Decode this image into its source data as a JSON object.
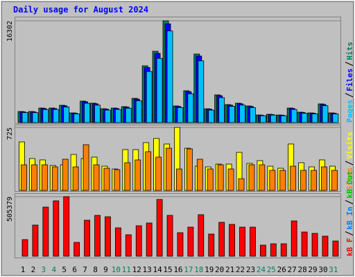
{
  "title": "Daily usage for August 2024",
  "chart_data": [
    {
      "type": "bar",
      "ylim": [
        0,
        16302
      ],
      "yticks": [
        16302
      ],
      "series": [
        {
          "name": "Pages",
          "color": "#00c0ff",
          "values": [
            1597,
            1597,
            2096,
            2096,
            2496,
            1398,
            3094,
            2795,
            1996,
            2096,
            2296,
            3494,
            8185,
            10281,
            14672,
            2396,
            4591,
            9881,
            1996,
            3992,
            2595,
            2795,
            2396,
            1098,
            1198,
            1098,
            2096,
            1498,
            1398,
            2695,
            1398
          ]
        },
        {
          "name": "Files",
          "color": "#0000ff",
          "values": [
            1720,
            1720,
            2260,
            2260,
            2690,
            1506,
            3335,
            3012,
            2151,
            2260,
            2474,
            3766,
            8821,
            11080,
            15813,
            2582,
            4948,
            10650,
            2151,
            4303,
            2797,
            3012,
            2582,
            1183,
            1291,
            1183,
            2260,
            1614,
            1506,
            2904,
            1506
          ]
        },
        {
          "name": "Hits",
          "color": "#00805c",
          "values": [
            1774,
            1774,
            2329,
            2329,
            2773,
            1553,
            3438,
            3105,
            2218,
            2329,
            2551,
            3882,
            9094,
            11423,
            16302,
            2662,
            5101,
            10979,
            2218,
            4436,
            2883,
            3105,
            2662,
            1220,
            1331,
            1220,
            2329,
            1664,
            1553,
            2994,
            1553
          ]
        }
      ]
    },
    {
      "type": "bar",
      "ylim": [
        0,
        725
      ],
      "yticks": [
        725
      ],
      "series": [
        {
          "name": "Sites",
          "color": "#ff8000",
          "values": [
            295,
            295,
            295,
            271,
            359,
            271,
            526,
            295,
            255,
            239,
            319,
            351,
            446,
            383,
            486,
            247,
            478,
            359,
            247,
            295,
            247,
            135,
            295,
            295,
            231,
            231,
            279,
            231,
            231,
            271,
            231
          ]
        },
        {
          "name": "Visits",
          "color": "#ffff00",
          "values": [
            558,
            367,
            351,
            287,
            295,
            414,
            367,
            383,
            279,
            247,
            470,
            470,
            550,
            598,
            534,
            725,
            486,
            279,
            271,
            303,
            303,
            438,
            311,
            343,
            279,
            255,
            534,
            319,
            271,
            351,
            279
          ]
        }
      ]
    },
    {
      "type": "bar",
      "ylim": [
        0,
        505379
      ],
      "yticks": [
        505379
      ],
      "categories": [
        "1",
        "2",
        "3",
        "4",
        "5",
        "6",
        "7",
        "8",
        "9",
        "10",
        "11",
        "12",
        "13",
        "14",
        "15",
        "16",
        "17",
        "18",
        "19",
        "20",
        "21",
        "22",
        "23",
        "24",
        "25",
        "26",
        "27",
        "28",
        "29",
        "30",
        "31"
      ],
      "category_colors": [
        "#000000",
        "#000000",
        "#00805c",
        "#00805c",
        "#000000",
        "#000000",
        "#000000",
        "#000000",
        "#000000",
        "#00805c",
        "#00805c",
        "#000000",
        "#000000",
        "#000000",
        "#000000",
        "#000000",
        "#00805c",
        "#00805c",
        "#000000",
        "#000000",
        "#000000",
        "#000000",
        "#000000",
        "#00805c",
        "#00805c",
        "#000000",
        "#000000",
        "#000000",
        "#000000",
        "#000000",
        "#00805c"
      ],
      "series": [
        {
          "name": "kB F",
          "color": "#ff0000",
          "values": [
            141030,
            264420,
            417200,
            470080,
            505379,
            117520,
            305550,
            346680,
            334930,
            240920,
            182160,
            258540,
            282050,
            481830,
            346680,
            199780,
            246790,
            352560,
            188030,
            287920,
            270300,
            246790,
            246790,
            94010,
            105770,
            105770,
            299670,
            205660,
            193910,
            170400,
            129270
          ]
        },
        {
          "name": "kB In",
          "color": "#0080ff",
          "values": [
            0,
            0,
            0,
            0,
            0,
            0,
            0,
            0,
            0,
            0,
            0,
            0,
            0,
            0,
            0,
            0,
            0,
            0,
            0,
            0,
            0,
            0,
            0,
            0,
            0,
            0,
            0,
            0,
            0,
            0,
            0
          ]
        },
        {
          "name": "kB Out",
          "color": "#00c000",
          "values": [
            0,
            0,
            0,
            0,
            0,
            0,
            0,
            0,
            0,
            0,
            0,
            0,
            0,
            0,
            0,
            0,
            0,
            0,
            0,
            0,
            0,
            0,
            0,
            0,
            0,
            0,
            0,
            0,
            0,
            0,
            0
          ]
        }
      ]
    }
  ]
}
